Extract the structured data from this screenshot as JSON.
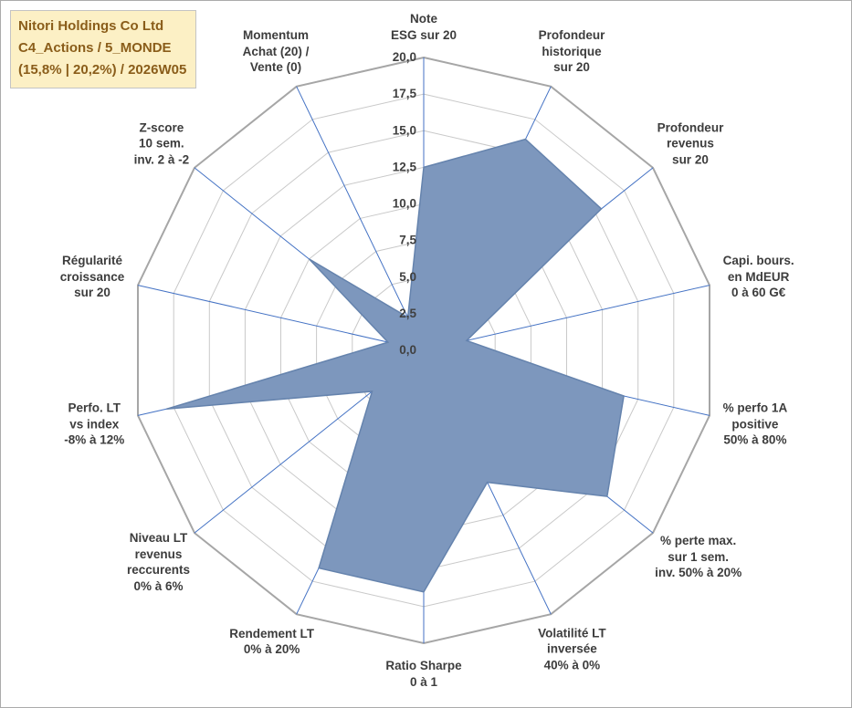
{
  "header": {
    "line1": "Nitori Holdings Co Ltd",
    "line2": "C4_Actions / 5_MONDE",
    "line3": "(15,8% | 20,2%) / 2026W05"
  },
  "chart_data": {
    "type": "radar",
    "title": "Nitori Holdings Co Ltd",
    "subtitle": "C4_Actions / 5_MONDE (15,8% | 20,2%) / 2026W05",
    "r_min": 0,
    "r_max": 20,
    "r_step": 2.5,
    "grid": true,
    "radial_ticks": [
      "0,0",
      "2,5",
      "5,0",
      "7,5",
      "10,0",
      "12,5",
      "15,0",
      "17,5",
      "20,0"
    ],
    "axes": [
      {
        "label": [
          "Note",
          "ESG sur 20"
        ],
        "value": 12.5
      },
      {
        "label": [
          "Profondeur",
          "historique",
          "sur 20"
        ],
        "value": 16
      },
      {
        "label": [
          "Profondeur",
          "revenus",
          "sur 20"
        ],
        "value": 15.5
      },
      {
        "label": [
          "Capi. bours.",
          "en MdEUR",
          "0 à 60 G€"
        ],
        "value": 3
      },
      {
        "label": [
          "% perfo 1A",
          "positive",
          "50% à 80%"
        ],
        "value": 14
      },
      {
        "label": [
          "% perte max.",
          "sur 1 sem.",
          "inv. 50% à 20%"
        ],
        "value": 16
      },
      {
        "label": [
          "Volatilité LT",
          "inversée",
          "40% à 0%"
        ],
        "value": 10
      },
      {
        "label": [
          "Ratio Sharpe",
          "0 à 1"
        ],
        "value": 16.5
      },
      {
        "label": [
          "Rendement LT",
          "0% à 20%"
        ],
        "value": 16.5
      },
      {
        "label": [
          "Niveau LT",
          "revenus",
          "reccurents",
          "0% à 6%"
        ],
        "value": 4.5
      },
      {
        "label": [
          "Perfo. LT",
          "vs index",
          "-8% à 12%"
        ],
        "value": 18
      },
      {
        "label": [
          "Régularité",
          "croissance",
          "sur 20"
        ],
        "value": 2.5
      },
      {
        "label": [
          "Z-score",
          "10 sem.",
          "inv. 2 à -2"
        ],
        "value": 10
      },
      {
        "label": [
          "Momentum",
          "Achat (20) /",
          "Vente (0)"
        ],
        "value": 2.5
      }
    ],
    "colors": {
      "fill": "#7d97bd",
      "stroke": "#6583ad",
      "spoke": "#4472c4",
      "ring": "#c9c9c9",
      "outer_ring": "#a6a6a6",
      "label": "#3d3d3d",
      "tick": "#404040",
      "title_bg": "#fcf0c5",
      "title_text": "#8a5d1a",
      "page_border": "#ababab"
    }
  }
}
